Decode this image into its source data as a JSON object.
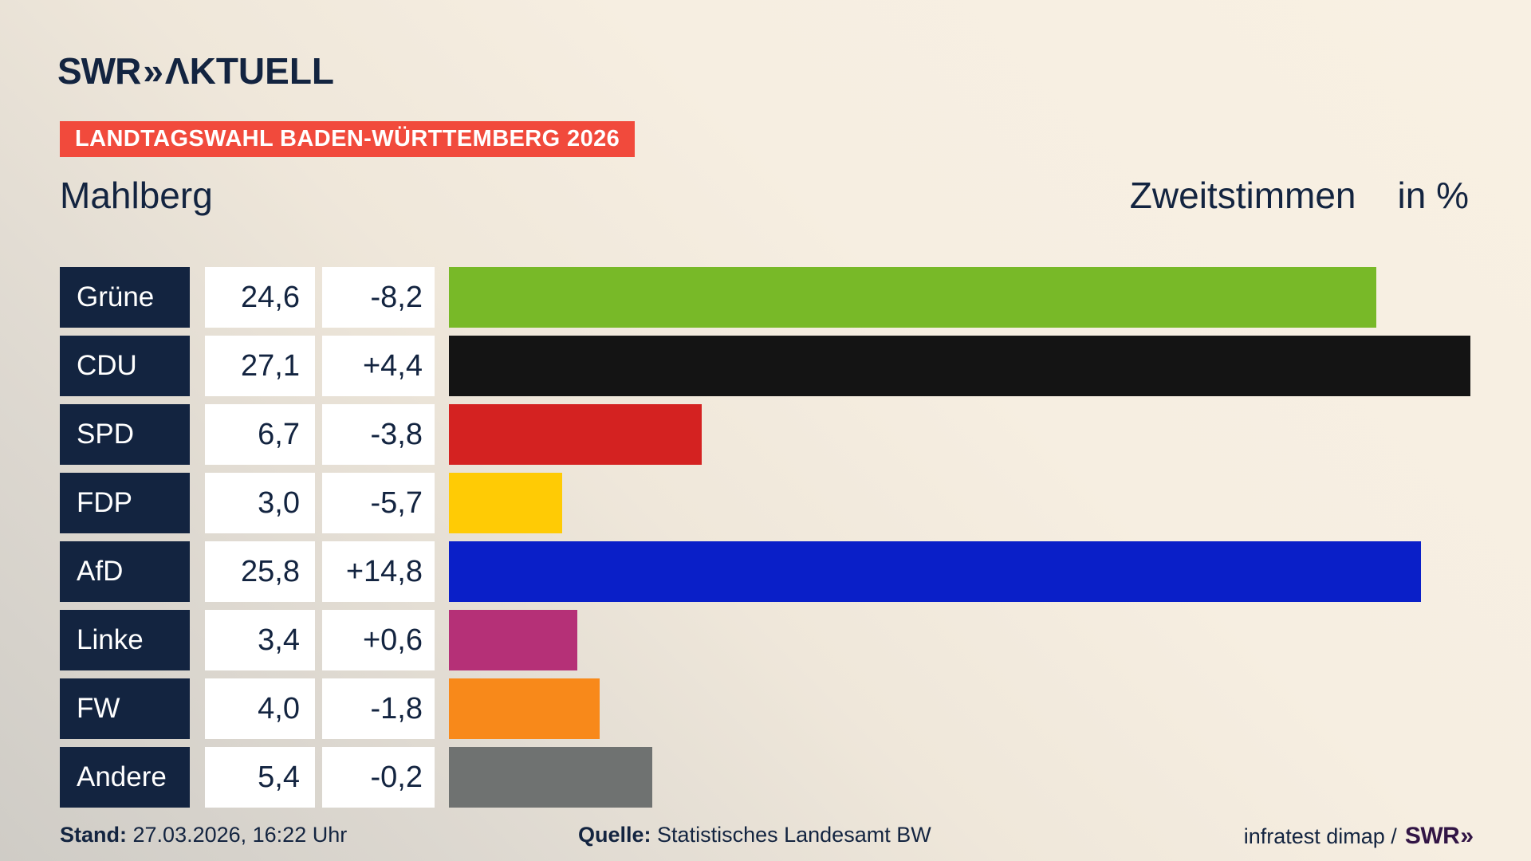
{
  "header": {
    "logo": {
      "text": "SWR",
      "chevrons": "»",
      "suffix": "ΛKTUELL"
    },
    "banner_label": "LANDTAGSWAHL BADEN-WÜRTTEMBERG 2026"
  },
  "title": {
    "location": "Mahlberg",
    "measure": "Zweitstimmen",
    "unit": "in %"
  },
  "chart_data": {
    "type": "bar",
    "orientation": "horizontal",
    "title": "Mahlberg — Zweitstimmen in %",
    "xlabel": "Zweitstimmen in %",
    "xmax_scale": 27.44,
    "categories": [
      "Grüne",
      "CDU",
      "SPD",
      "FDP",
      "AfD",
      "Linke",
      "FW",
      "Andere"
    ],
    "values": [
      24.6,
      27.1,
      6.7,
      3.0,
      25.8,
      3.4,
      4.0,
      5.4
    ],
    "changes": [
      -8.2,
      4.4,
      -3.8,
      -5.7,
      14.8,
      0.6,
      -1.8,
      -0.2
    ],
    "rows": [
      {
        "party": "Grüne",
        "value": 24.6,
        "value_label": "24,6",
        "change_label": "-8,2",
        "color": "#78b928"
      },
      {
        "party": "CDU",
        "value": 27.1,
        "value_label": "27,1",
        "change_label": "+4,4",
        "color": "#141414"
      },
      {
        "party": "SPD",
        "value": 6.7,
        "value_label": "6,7",
        "change_label": "-3,8",
        "color": "#d42221"
      },
      {
        "party": "FDP",
        "value": 3.0,
        "value_label": "3,0",
        "change_label": "-5,7",
        "color": "#ffcb05"
      },
      {
        "party": "AfD",
        "value": 25.8,
        "value_label": "25,8",
        "change_label": "+14,8",
        "color": "#0a1fc8"
      },
      {
        "party": "Linke",
        "value": 3.4,
        "value_label": "3,4",
        "change_label": "+0,6",
        "color": "#b53077"
      },
      {
        "party": "FW",
        "value": 4.0,
        "value_label": "4,0",
        "change_label": "-1,8",
        "color": "#f8891a"
      },
      {
        "party": "Andere",
        "value": 5.4,
        "value_label": "5,4",
        "change_label": "-0,2",
        "color": "#6f7271"
      }
    ]
  },
  "footer": {
    "stand_label": "Stand:",
    "stand_value": "27.03.2026, 16:22 Uhr",
    "source_label": "Quelle:",
    "source_value": "Statistisches Landesamt BW",
    "credit_text": "infratest dimap /",
    "credit_logo": {
      "text": "SWR",
      "chevrons": "»"
    }
  },
  "colors": {
    "navy": "#132440",
    "banner_red": "#f14a3c",
    "box_white": "#ffffff",
    "swr_footer_logo_purple": "#321545",
    "background_top_right": "#f8f0e3",
    "background_bottom_left": "#cfccc6"
  }
}
